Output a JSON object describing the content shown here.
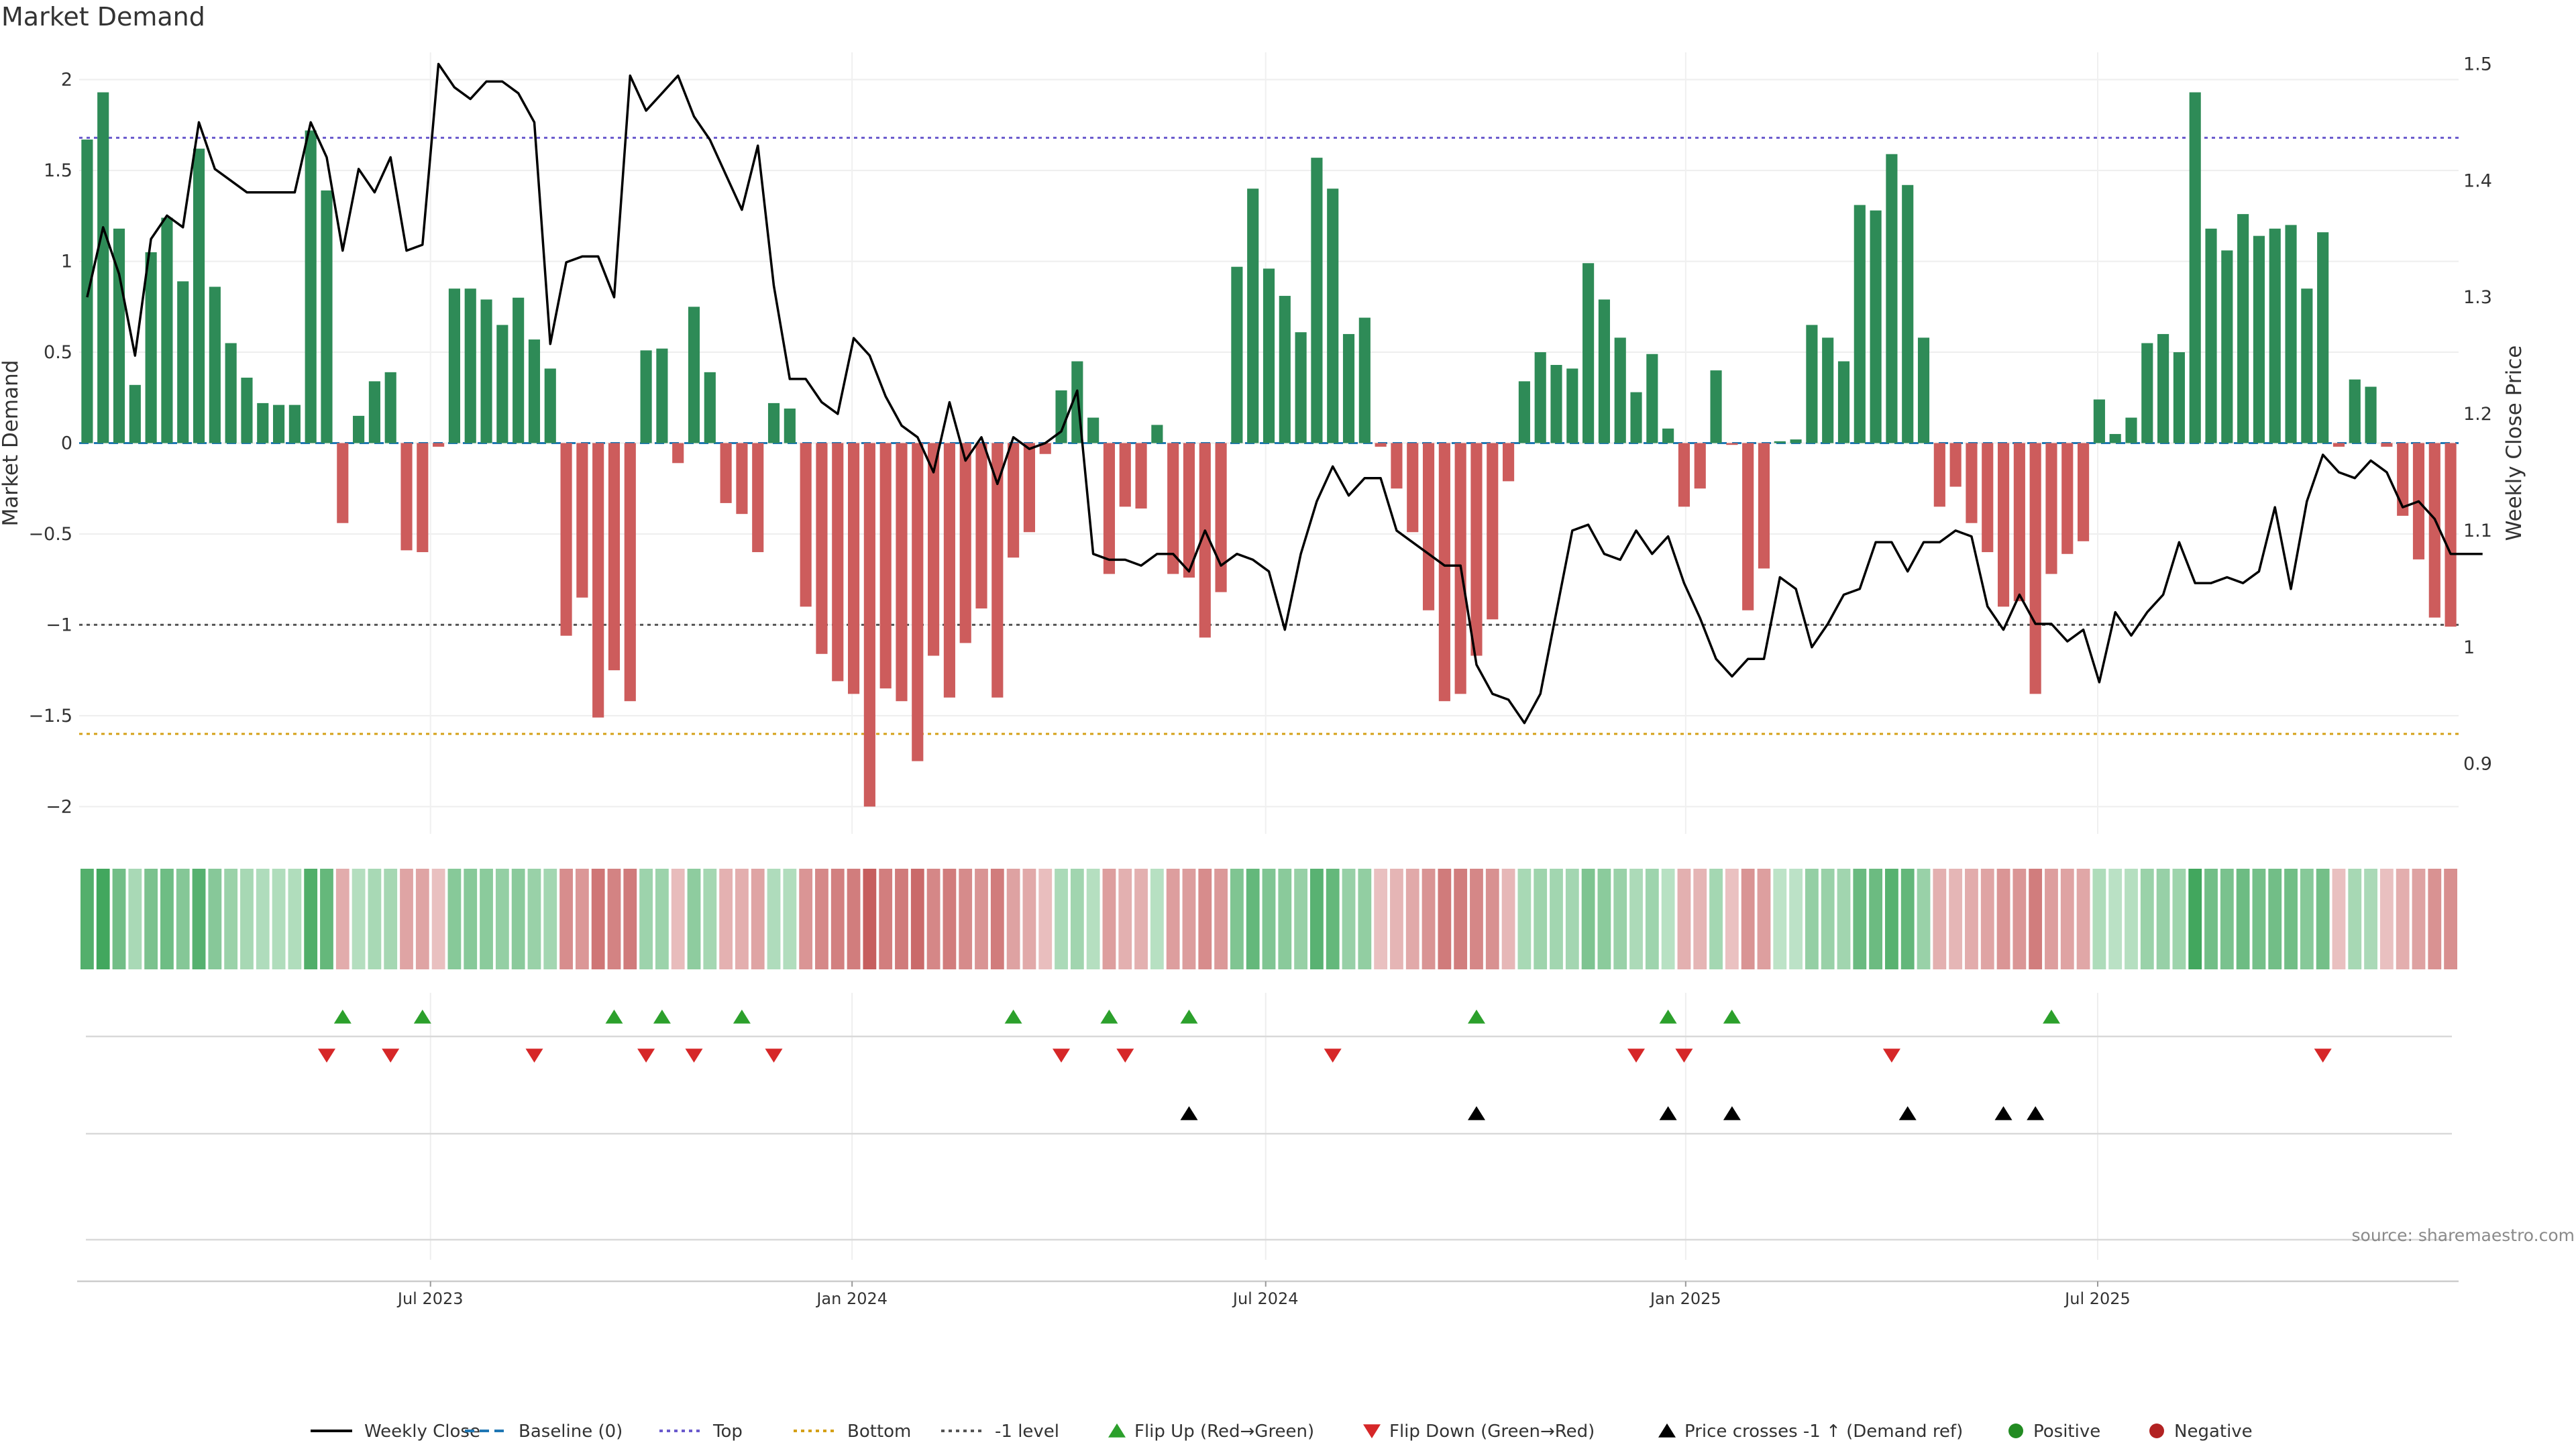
{
  "title": "Market Demand",
  "source": "source: sharemaestro.com",
  "colors": {
    "positive": "#2e8b57",
    "negative": "#cd5c5c",
    "price": "#000000",
    "top": "#6a5acd",
    "bottom": "#d4a017",
    "minus_one": "#555555",
    "flip_up": "#2ca02c",
    "flip_down": "#d62728",
    "cross": "#000000"
  },
  "chart_data": {
    "type": "bar",
    "title": "Market Demand",
    "ylabel": "Market Demand",
    "y2label": "Weekly Close Price",
    "ylim": [
      -2.15,
      2.15
    ],
    "y2lim": [
      0.84,
      1.51
    ],
    "yticks": [
      "2",
      "1.5",
      "1",
      "0.5",
      "0",
      "−0.5",
      "−1",
      "−1.5",
      "−2"
    ],
    "ytick_values": [
      2,
      1.5,
      1,
      0.5,
      0,
      -0.5,
      -1,
      -1.5,
      -2
    ],
    "y2ticks": [
      "1.5",
      "1.4",
      "1.3",
      "1.2",
      "1.1",
      "1",
      "0.9"
    ],
    "y2tick_values": [
      1.5,
      1.4,
      1.3,
      1.2,
      1.1,
      1.0,
      0.9
    ],
    "x_start": "2023-03-10",
    "week_step_days": 7,
    "xtick_labels": [
      "Jul 2023",
      "Jan 2024",
      "Jul 2024",
      "Jan 2025",
      "Jul 2025"
    ],
    "xtick_week_index": [
      22,
      48.4,
      74.3,
      100.6,
      126.4
    ],
    "reference_lines": {
      "top": 1.68,
      "bottom": -1.6,
      "minus_one": -1.0,
      "baseline": 0
    },
    "demand": [
      1.67,
      1.93,
      1.18,
      0.32,
      1.05,
      1.24,
      0.89,
      1.62,
      0.86,
      0.55,
      0.36,
      0.22,
      0.21,
      0.21,
      1.72,
      1.39,
      -0.44,
      0.15,
      0.34,
      0.39,
      -0.59,
      -0.6,
      -0.02,
      0.85,
      0.85,
      0.79,
      0.65,
      0.8,
      0.57,
      0.41,
      -1.06,
      -0.85,
      -1.51,
      -1.25,
      -1.42,
      0.51,
      0.52,
      -0.11,
      0.75,
      0.39,
      -0.33,
      -0.39,
      -0.6,
      0.22,
      0.19,
      -0.9,
      -1.16,
      -1.31,
      -1.38,
      -2.0,
      -1.35,
      -1.42,
      -1.75,
      -1.17,
      -1.4,
      -1.1,
      -0.91,
      -1.4,
      -0.63,
      -0.49,
      -0.06,
      0.29,
      0.45,
      0.14,
      -0.72,
      -0.35,
      -0.36,
      0.1,
      -0.72,
      -0.74,
      -1.07,
      -0.82,
      0.97,
      1.4,
      0.96,
      0.81,
      0.61,
      1.57,
      1.4,
      0.6,
      0.69,
      -0.02,
      -0.25,
      -0.49,
      -0.92,
      -1.42,
      -1.38,
      -1.17,
      -0.97,
      -0.21,
      0.34,
      0.5,
      0.43,
      0.41,
      0.99,
      0.79,
      0.58,
      0.28,
      0.49,
      0.08,
      -0.35,
      -0.25,
      0.4,
      -0.01,
      -0.92,
      -0.69,
      0.01,
      0.02,
      0.65,
      0.58,
      0.45,
      1.31,
      1.28,
      1.59,
      1.42,
      0.58,
      -0.35,
      -0.24,
      -0.44,
      -0.6,
      -0.9,
      -0.87,
      -1.38,
      -0.72,
      -0.61,
      -0.54,
      0.24,
      0.05,
      0.14,
      0.55,
      0.6,
      0.5,
      1.93,
      1.18,
      1.06,
      1.26,
      1.14,
      1.18,
      1.2,
      0.85,
      1.16,
      -0.02,
      0.35,
      0.31,
      -0.02,
      -0.4,
      -0.64,
      -0.96,
      -1.01
    ],
    "close": [
      1.3,
      1.36,
      1.32,
      1.25,
      1.35,
      1.37,
      1.36,
      1.45,
      1.41,
      1.4,
      1.39,
      1.39,
      1.39,
      1.39,
      1.45,
      1.42,
      1.34,
      1.41,
      1.39,
      1.42,
      1.34,
      1.345,
      1.5,
      1.48,
      1.47,
      1.485,
      1.485,
      1.475,
      1.45,
      1.26,
      1.33,
      1.335,
      1.335,
      1.3,
      1.49,
      1.46,
      1.475,
      1.49,
      1.455,
      1.435,
      1.405,
      1.375,
      1.43,
      1.31,
      1.23,
      1.23,
      1.21,
      1.2,
      1.265,
      1.25,
      1.215,
      1.19,
      1.18,
      1.15,
      1.21,
      1.16,
      1.18,
      1.14,
      1.18,
      1.17,
      1.175,
      1.185,
      1.22,
      1.08,
      1.075,
      1.075,
      1.07,
      1.08,
      1.08,
      1.065,
      1.1,
      1.07,
      1.08,
      1.075,
      1.065,
      1.015,
      1.08,
      1.125,
      1.155,
      1.13,
      1.145,
      1.145,
      1.1,
      1.09,
      1.08,
      1.07,
      1.07,
      0.985,
      0.96,
      0.955,
      0.935,
      0.96,
      1.03,
      1.1,
      1.105,
      1.08,
      1.075,
      1.1,
      1.08,
      1.095,
      1.055,
      1.025,
      0.99,
      0.975,
      0.99,
      0.99,
      1.06,
      1.05,
      1.0,
      1.02,
      1.045,
      1.05,
      1.09,
      1.09,
      1.065,
      1.09,
      1.09,
      1.1,
      1.095,
      1.035,
      1.015,
      1.045,
      1.02,
      1.02,
      1.005,
      1.015,
      0.97,
      1.03,
      1.01,
      1.03,
      1.045,
      1.09,
      1.055,
      1.055,
      1.06,
      1.055,
      1.065,
      1.12,
      1.05,
      1.125,
      1.165,
      1.15,
      1.145,
      1.16,
      1.15,
      1.12,
      1.125,
      1.11,
      1.08,
      1.08,
      1.08
    ],
    "flip_up_week": [
      16,
      21,
      33,
      36,
      41,
      58,
      64,
      69,
      87,
      99,
      103,
      123
    ],
    "flip_down_week": [
      15,
      19,
      28,
      35,
      38,
      43,
      61,
      65,
      78,
      97,
      100,
      113,
      140
    ],
    "cross_week": [
      69,
      87,
      99,
      103,
      114,
      120,
      122
    ],
    "legend": [
      "Weekly Close",
      "Baseline (0)",
      "Top",
      "Bottom",
      "-1 level",
      "Flip Up (Red→Green)",
      "Flip Down (Green→Red)",
      "Price crosses -1 ↑ (Demand ref)",
      "Positive",
      "Negative"
    ]
  }
}
